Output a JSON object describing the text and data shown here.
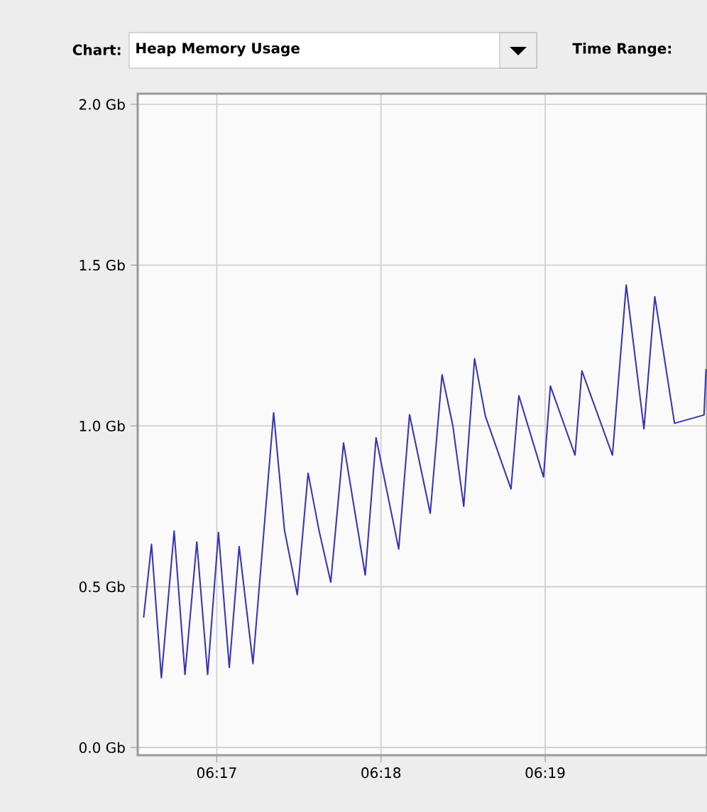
{
  "chart_data": {
    "type": "line",
    "title": "Heap Memory Usage",
    "annotations": [
      "Chart:",
      "Time Range:"
    ],
    "x": [
      6.2759,
      6.2767,
      6.2777,
      6.279,
      6.2801,
      6.2813,
      6.2824,
      6.2835,
      6.2846,
      6.2856,
      6.287,
      6.2891,
      6.2902,
      6.2915,
      6.2926,
      6.2937,
      6.2949,
      6.2962,
      6.2984,
      6.2995,
      6.3018,
      6.3029,
      6.305,
      6.3062,
      6.3073,
      6.3084,
      6.3095,
      6.3106,
      6.3132,
      6.314,
      6.3165,
      6.3172,
      6.3197,
      6.3204,
      6.3235,
      6.3249,
      6.3267,
      6.3278,
      6.3298,
      6.3328,
      6.333
    ],
    "series": [
      {
        "color": "#3030c8",
        "values": [
          0.404,
          0.632,
          0.217,
          0.673,
          0.227,
          0.639,
          0.227,
          0.669,
          0.249,
          0.625,
          0.261,
          1.041,
          0.676,
          0.475,
          0.853,
          0.676,
          0.514,
          0.947,
          0.536,
          0.963,
          0.617,
          1.035,
          0.728,
          1.159,
          1.0,
          0.75,
          1.209,
          1.03,
          0.804,
          1.094,
          0.841,
          1.124,
          0.909,
          1.171,
          0.909,
          1.438,
          0.991,
          1.402,
          1.008,
          1.034,
          1.177
        ]
      }
    ],
    "xlim": [
      6.2753,
      6.3331
    ],
    "xticks": [
      {
        "value": 6.28333,
        "label": "06:17"
      },
      {
        "value": 6.3,
        "label": "06:18"
      },
      {
        "value": 6.31667,
        "label": "06:19"
      }
    ],
    "ylim": [
      -0.024,
      2.033
    ],
    "yticks": [
      {
        "value": 0,
        "label": "0.0 Gb"
      },
      {
        "value": 0.5,
        "label": "0.5 Gb"
      },
      {
        "value": 1,
        "label": "1.0 Gb"
      },
      {
        "value": 1.5,
        "label": "1.5 Gb"
      },
      {
        "value": 2,
        "label": "2.0 Gb"
      }
    ],
    "grid": true,
    "marker": "none"
  }
}
